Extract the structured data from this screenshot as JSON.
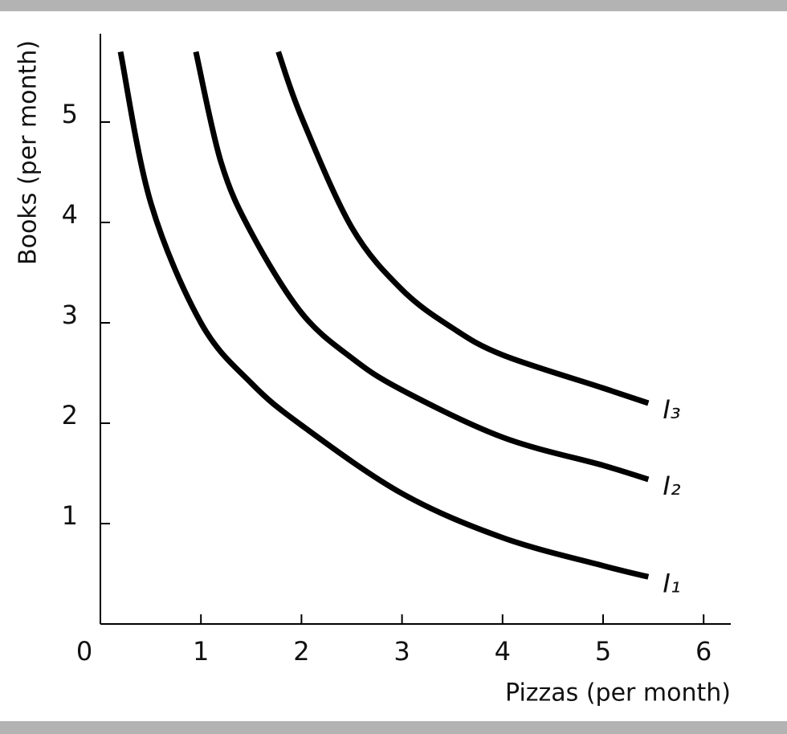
{
  "chart_data": {
    "type": "line",
    "x_label": "Pizzas (per month)",
    "y_label": "Books (per month)",
    "xlim": [
      0,
      6.27
    ],
    "ylim": [
      0,
      5.88
    ],
    "xticks": [
      0,
      1,
      2,
      3,
      4,
      5,
      6
    ],
    "yticks": [
      1,
      2,
      3,
      4,
      5
    ],
    "series": [
      {
        "name": "I₁",
        "color": "#000000",
        "x": [
          0.2,
          0.5,
          1,
          1.5,
          2,
          3,
          4,
          5,
          5.45
        ],
        "values": [
          5.7,
          4.2,
          3.0,
          2.4,
          1.98,
          1.3,
          0.86,
          0.58,
          0.47
        ]
      },
      {
        "name": "I₂",
        "color": "#000000",
        "x": [
          0.95,
          1.2,
          1.5,
          2,
          2.5,
          3,
          4,
          5,
          5.45
        ],
        "values": [
          5.7,
          4.6,
          3.9,
          3.1,
          2.65,
          2.33,
          1.86,
          1.58,
          1.44
        ]
      },
      {
        "name": "I₃",
        "color": "#000000",
        "x": [
          1.77,
          2,
          2.5,
          3,
          3.5,
          4,
          5,
          5.45
        ],
        "values": [
          5.7,
          5.05,
          3.95,
          3.33,
          2.95,
          2.68,
          2.35,
          2.2
        ]
      }
    ]
  }
}
